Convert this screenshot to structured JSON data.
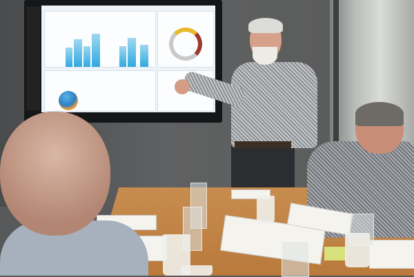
{
  "scene": {
    "description_tags": [
      "meeting-room",
      "presenter",
      "wall-display",
      "conference-table"
    ],
    "colors": {
      "wall": "#58595a",
      "table": "#c78d4f",
      "screen": "#eef3f8",
      "chart_accent": "#2fa9df",
      "donut_accent": "#e9b92a"
    }
  }
}
